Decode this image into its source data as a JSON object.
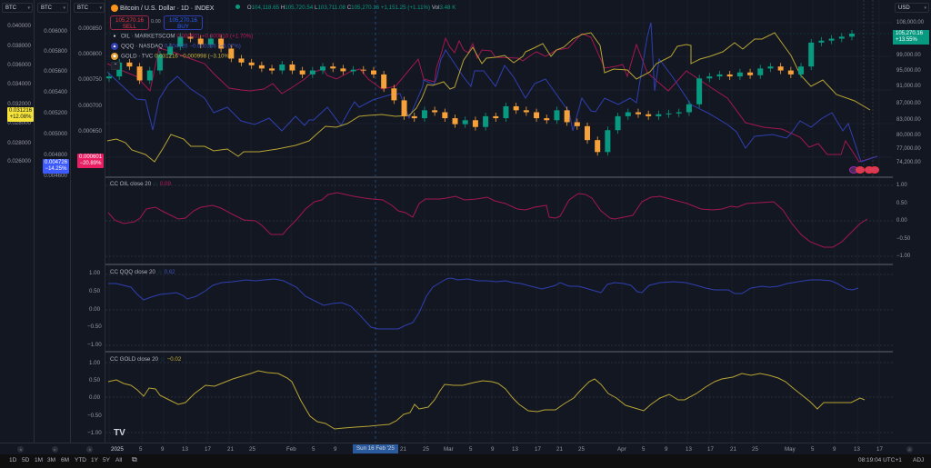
{
  "header": {
    "title": "Bitcoin / U.S. Dollar · 1D · INDEX",
    "ohlc": {
      "o_label": "O",
      "o": "104,118.65",
      "h_label": "H",
      "h": "105,720.54",
      "l_label": "L",
      "l": "103,711.08",
      "c_label": "C",
      "c": "105,270.16",
      "change": "+1,151.25 (+1.11%)",
      "vol_label": "Vol",
      "vol": "3.48 K"
    },
    "sell": {
      "price": "105,270.16",
      "label": "SELL"
    },
    "buy": {
      "price": "105,270.16",
      "label": "BUY"
    },
    "spread": "0.00"
  },
  "symbols": [
    {
      "name": "OIL · MARKETSCOM",
      "value": "0.000601",
      "change": "+0.000010 (+1.70%)",
      "color": "#c2185b"
    },
    {
      "name": "QQQ · NASDAQ",
      "value": "0.004726",
      "change": "−0.000306 (−6.07%)",
      "color": "#3f51b5"
    },
    {
      "name": "GOLD · TVC",
      "value": "0.031216",
      "change": "−0.000998 (−3.10%)",
      "color": "#c9b037"
    }
  ],
  "left_scales": [
    {
      "selector": "BTC",
      "ticks": [
        "0.040000",
        "0.038000",
        "0.036000",
        "0.034000",
        "0.032000",
        "0.030000",
        "0.028000",
        "0.026000"
      ],
      "badge": {
        "value": "0.031216",
        "pct": "+12.08%",
        "bg": "#f5e33a",
        "fg": "#131722"
      }
    },
    {
      "selector": "BTC",
      "ticks": [
        "0.006000",
        "0.005800",
        "0.005600",
        "0.005400",
        "0.005200",
        "0.005000",
        "0.004800",
        "0.004600"
      ],
      "badge": {
        "value": "0.004726",
        "pct": "−14.25%",
        "bg": "#3d5afe",
        "fg": "#ffffff"
      }
    },
    {
      "selector": "BTC",
      "ticks": [
        "0.000850",
        "0.000800",
        "0.000750",
        "0.000700",
        "0.000650"
      ],
      "badge": {
        "value": "0.000601",
        "pct": "−20.89%",
        "bg": "#e91e63",
        "fg": "#ffffff"
      }
    }
  ],
  "right_axis": {
    "currency": "USD",
    "ticks": [
      "108,000.00",
      "99,000.00",
      "95,000.00",
      "91,000.00",
      "87,000.00",
      "83,000.00",
      "80,000.00",
      "77,000.00",
      "74,200.00"
    ],
    "price_badge": {
      "value": "105,270.16",
      "pct": "+13.55%"
    },
    "pane_ticks": [
      "1.00",
      "0.50",
      "0.00",
      "−0.50",
      "−1.00"
    ]
  },
  "panes": [
    {
      "label": "CC OIL close 20",
      "value": "0.09",
      "color": "#c2185b"
    },
    {
      "label": "CC QQQ close 20",
      "value": "0.62",
      "color": "#3f51b5"
    },
    {
      "label": "CC GOLD close 20",
      "value": "−0.02",
      "color": "#c9b037"
    }
  ],
  "time_axis": {
    "ticks": [
      "2025",
      "5",
      "9",
      "13",
      "17",
      "21",
      "25",
      "Feb",
      "5",
      "9",
      "21",
      "25",
      "Mar",
      "5",
      "9",
      "13",
      "17",
      "21",
      "25",
      "Apr",
      "5",
      "9",
      "13",
      "17",
      "21",
      "25",
      "May",
      "5",
      "9",
      "13",
      "17"
    ],
    "crosshair_date": "Sun 16 Feb '25"
  },
  "footer": {
    "timeframes": [
      "1D",
      "5D",
      "1M",
      "3M",
      "6M",
      "YTD",
      "1Y",
      "5Y",
      "All"
    ],
    "clock": "08:19:04 UTC+1",
    "adj": "ADJ"
  },
  "chart_data": [
    {
      "type": "candlestick+line",
      "title": "Bitcoin / U.S. Dollar · 1D · INDEX",
      "xlabel": "Date",
      "ylabel": "USD",
      "ylim": [
        74200,
        108000
      ],
      "x_range": [
        "2025-01-01",
        "2025-05-10"
      ],
      "btc_close_approx": [
        94500,
        98000,
        97000,
        93500,
        96000,
        100000,
        102000,
        104500,
        104000,
        102500,
        104000,
        101500,
        99000,
        98000,
        97300,
        96500,
        96000,
        97500,
        96000,
        95000,
        96000,
        97000,
        96500,
        95800,
        96200,
        96000,
        95000,
        91500,
        88500,
        84500,
        84000,
        86000,
        85500,
        84000,
        82500,
        83500,
        81800,
        84500,
        84000,
        87000,
        86000,
        85500,
        84000,
        83500,
        86000,
        83000,
        82000,
        78500,
        75500,
        81000,
        84500,
        85500,
        85000,
        84500,
        85000,
        85200,
        85500,
        87500,
        94000,
        94500,
        95000,
        94500,
        95500,
        94800,
        96500,
        97000,
        96000,
        95000,
        97000,
        103000,
        103500,
        104000,
        104500,
        105270
      ],
      "overlays": [
        {
          "name": "OIL · MARKETSCOM",
          "scale": "0.000650–0.000850",
          "last": 0.000601,
          "pct": "−20.89%"
        },
        {
          "name": "QQQ · NASDAQ",
          "scale": "0.004600–0.006000",
          "last": 0.004726,
          "pct": "−14.25%"
        },
        {
          "name": "GOLD · TVC",
          "scale": "0.026000–0.040000",
          "last": 0.031216,
          "pct": "+12.08%"
        }
      ]
    },
    {
      "type": "line",
      "title": "CC OIL close 20",
      "ylim": [
        -1,
        1
      ],
      "last": 0.09,
      "values": [
        0.2,
        0.1,
        0.1,
        0.15,
        0.35,
        0.4,
        0.3,
        0.2,
        0.0,
        0.25,
        0.35,
        0.4,
        0.3,
        0.2,
        0.05,
        0.05,
        -0.15,
        -0.3,
        -0.2,
        0.2,
        0.5,
        0.7,
        0.8,
        0.75,
        0.72,
        0.7,
        0.65,
        0.55,
        0.45,
        0.35,
        0.65,
        0.65,
        0.7,
        0.65,
        0.7,
        0.65,
        0.55,
        0.5,
        0.45,
        0.5,
        0.45,
        0.1,
        0.2,
        0.6,
        0.65,
        0.5,
        0.2,
        0.15,
        0.2,
        0.55,
        0.7,
        0.65,
        0.55,
        0.5,
        0.5,
        0.5,
        0.45,
        0.45,
        0.5,
        0.4,
        0.0,
        -0.4,
        -0.55,
        -0.7,
        -0.4,
        0.09
      ]
    },
    {
      "type": "line",
      "title": "CC QQQ close 20",
      "ylim": [
        -1,
        1
      ],
      "last": 0.62,
      "values": [
        0.75,
        0.75,
        0.7,
        0.55,
        0.6,
        0.62,
        0.65,
        0.55,
        0.6,
        0.75,
        0.8,
        0.85,
        0.85,
        0.85,
        0.85,
        0.8,
        0.6,
        0.3,
        0.35,
        0.1,
        -0.3,
        -0.35,
        -0.35,
        -0.3,
        0.1,
        0.6,
        0.8,
        0.85,
        0.85,
        0.8,
        0.8,
        0.78,
        0.75,
        0.65,
        0.68,
        0.75,
        0.7,
        0.62,
        0.75,
        0.75,
        0.7,
        0.62,
        0.75,
        0.75,
        0.7,
        0.65,
        0.6,
        0.55,
        0.55,
        0.7,
        0.7,
        0.65,
        0.7,
        0.8,
        0.85,
        0.85,
        0.8,
        0.6,
        0.62
      ]
    },
    {
      "type": "line",
      "title": "CC GOLD close 20",
      "ylim": [
        -1,
        1
      ],
      "last": -0.02,
      "values": [
        0.5,
        0.55,
        0.5,
        0.4,
        0.2,
        0.35,
        0.3,
        0.1,
        -0.1,
        0.0,
        0.3,
        0.4,
        0.5,
        0.6,
        0.7,
        0.75,
        0.7,
        0.5,
        -0.2,
        -0.6,
        -0.8,
        -0.8,
        -0.78,
        -0.75,
        -0.7,
        -0.6,
        -0.3,
        -0.2,
        0.1,
        0.45,
        0.4,
        0.5,
        0.5,
        0.35,
        -0.2,
        -0.4,
        -0.3,
        -0.3,
        0.0,
        0.4,
        0.6,
        0.3,
        -0.2,
        -0.3,
        -0.5,
        -0.2,
        0.2,
        0.1,
        0.3,
        0.5,
        0.6,
        0.7,
        0.75,
        0.7,
        0.65,
        0.5,
        0.3,
        0.0,
        -0.3,
        -0.5,
        -0.2,
        -0.15,
        -0.15,
        0.1,
        -0.02
      ]
    }
  ]
}
